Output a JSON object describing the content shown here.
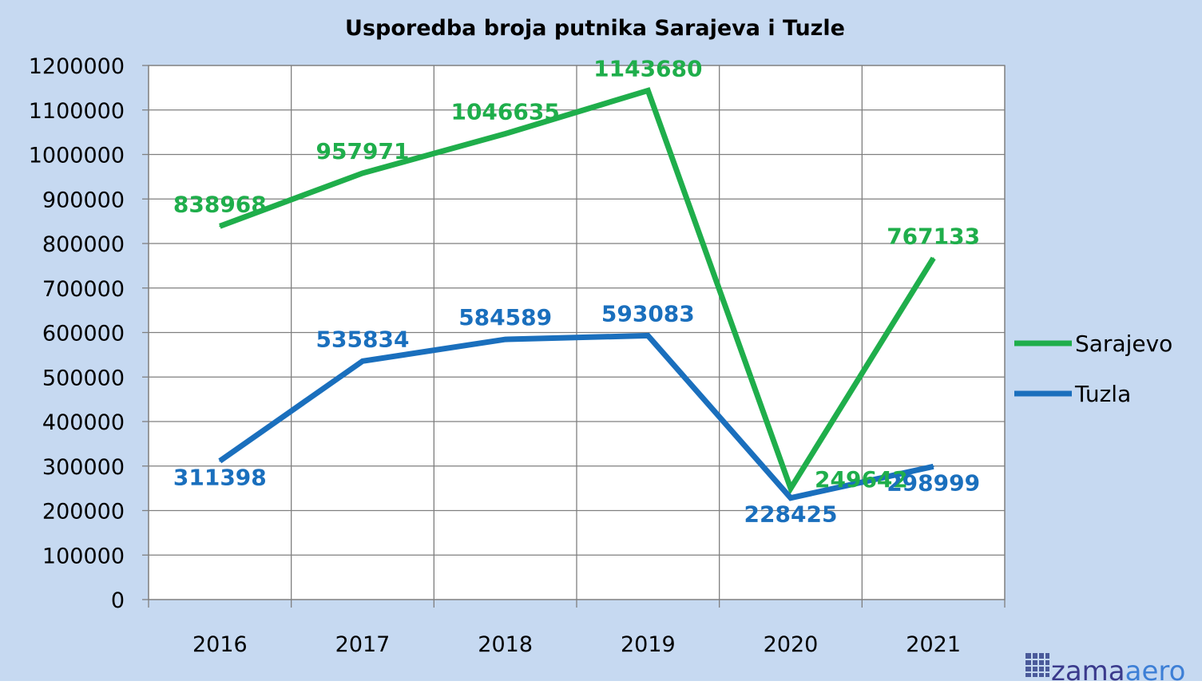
{
  "chart_data": {
    "type": "line",
    "title": "Usporedba broja putnika Sarajeva i Tuzle",
    "categories": [
      "2016",
      "2017",
      "2018",
      "2019",
      "2020",
      "2021"
    ],
    "ylim": [
      0,
      1200000
    ],
    "yticks": [
      "0",
      "100000",
      "200000",
      "300000",
      "400000",
      "500000",
      "600000",
      "700000",
      "800000",
      "900000",
      "1000000",
      "1100000",
      "1200000"
    ],
    "grid": true,
    "legend_position": "right",
    "series": [
      {
        "name": "Sarajevo",
        "color": "#1fae4b",
        "values": [
          838968,
          957971,
          1046635,
          1143680,
          249642,
          767133
        ],
        "labels": [
          "838968",
          "957971",
          "1046635",
          "1143680",
          "249642",
          "767133"
        ]
      },
      {
        "name": "Tuzla",
        "color": "#1a6fbd",
        "values": [
          311398,
          535834,
          584589,
          593083,
          228425,
          298999
        ],
        "labels": [
          "311398",
          "535834",
          "584589",
          "593083",
          "228425",
          "298999"
        ]
      }
    ],
    "background_color": "#c6d9f1",
    "plot_background_color": "#ffffff"
  },
  "logo": {
    "text_a": "zama",
    "text_b": "aero",
    "icon": "grid-square-icon"
  }
}
